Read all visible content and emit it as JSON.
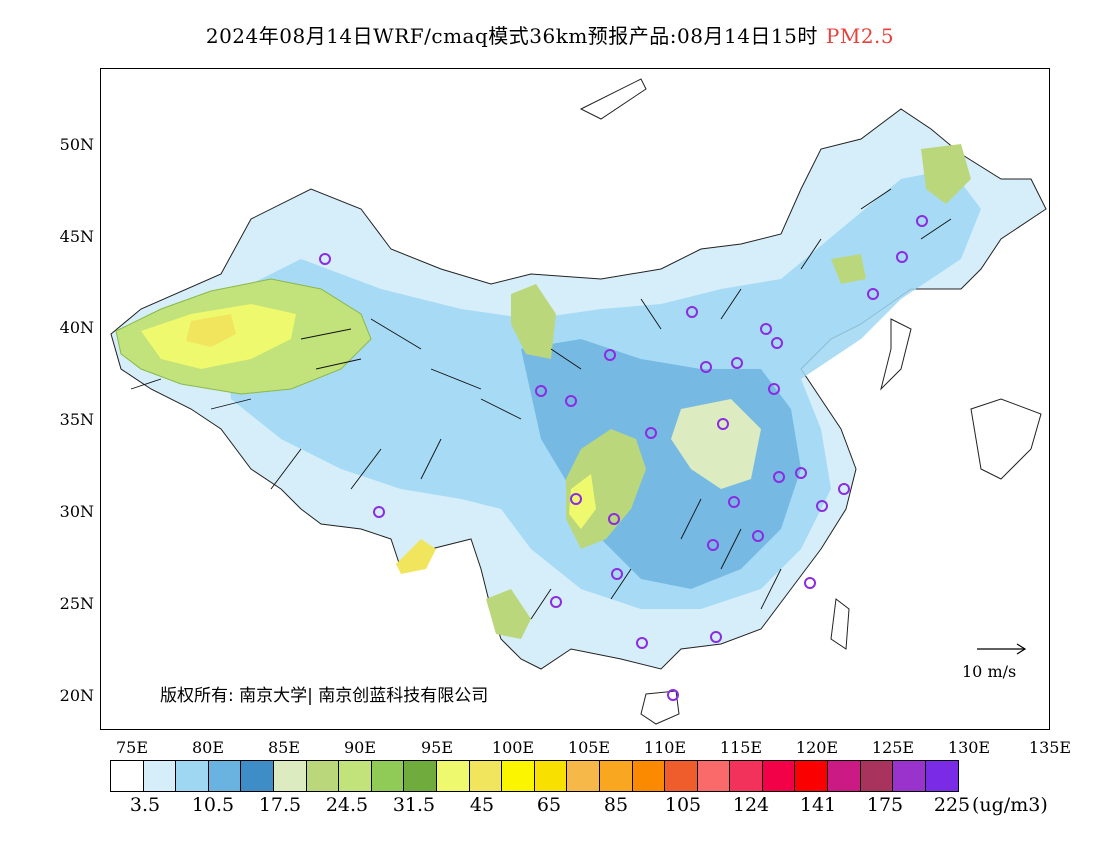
{
  "title": {
    "main": "2024年08月14日WRF/cmaq模式36km预报产品:08月14日15时",
    "variable": "PM2.5",
    "variable_color": "#e8413c"
  },
  "map": {
    "lat_labels": [
      "50N",
      "45N",
      "40N",
      "35N",
      "30N",
      "25N",
      "20N"
    ],
    "lon_labels": [
      "75E",
      "80E",
      "85E",
      "90E",
      "95E",
      "100E",
      "105E",
      "110E",
      "115E",
      "120E",
      "125E",
      "130E",
      "135E"
    ],
    "copyright": "版权所有: 南京大学| 南京创蓝科技有限公司",
    "wind_reference": "10 m/s",
    "land_color": "#eef6fb",
    "station_color": "#8b2be2"
  },
  "colorbar": {
    "colors": [
      "#ffffff",
      "#d6eefa",
      "#9fd7f3",
      "#6ab2e0",
      "#3f8dc7",
      "#dcecc0",
      "#bad77c",
      "#c2e27b",
      "#90cb57",
      "#6fab3d",
      "#eef96d",
      "#f2e55e",
      "#fcf500",
      "#f8e000",
      "#f7b84a",
      "#f9a721",
      "#fb8a00",
      "#f05d2c",
      "#fb6a6a",
      "#f2325a",
      "#f20048",
      "#fa0000",
      "#cc1a84",
      "#a8345e",
      "#9933cc",
      "#7a2be6"
    ],
    "tick_labels": [
      "3.5",
      "10.5",
      "17.5",
      "24.5",
      "31.5",
      "45",
      "65",
      "85",
      "105",
      "124",
      "141",
      "175",
      "225"
    ],
    "unit": "(ug/m3)"
  }
}
